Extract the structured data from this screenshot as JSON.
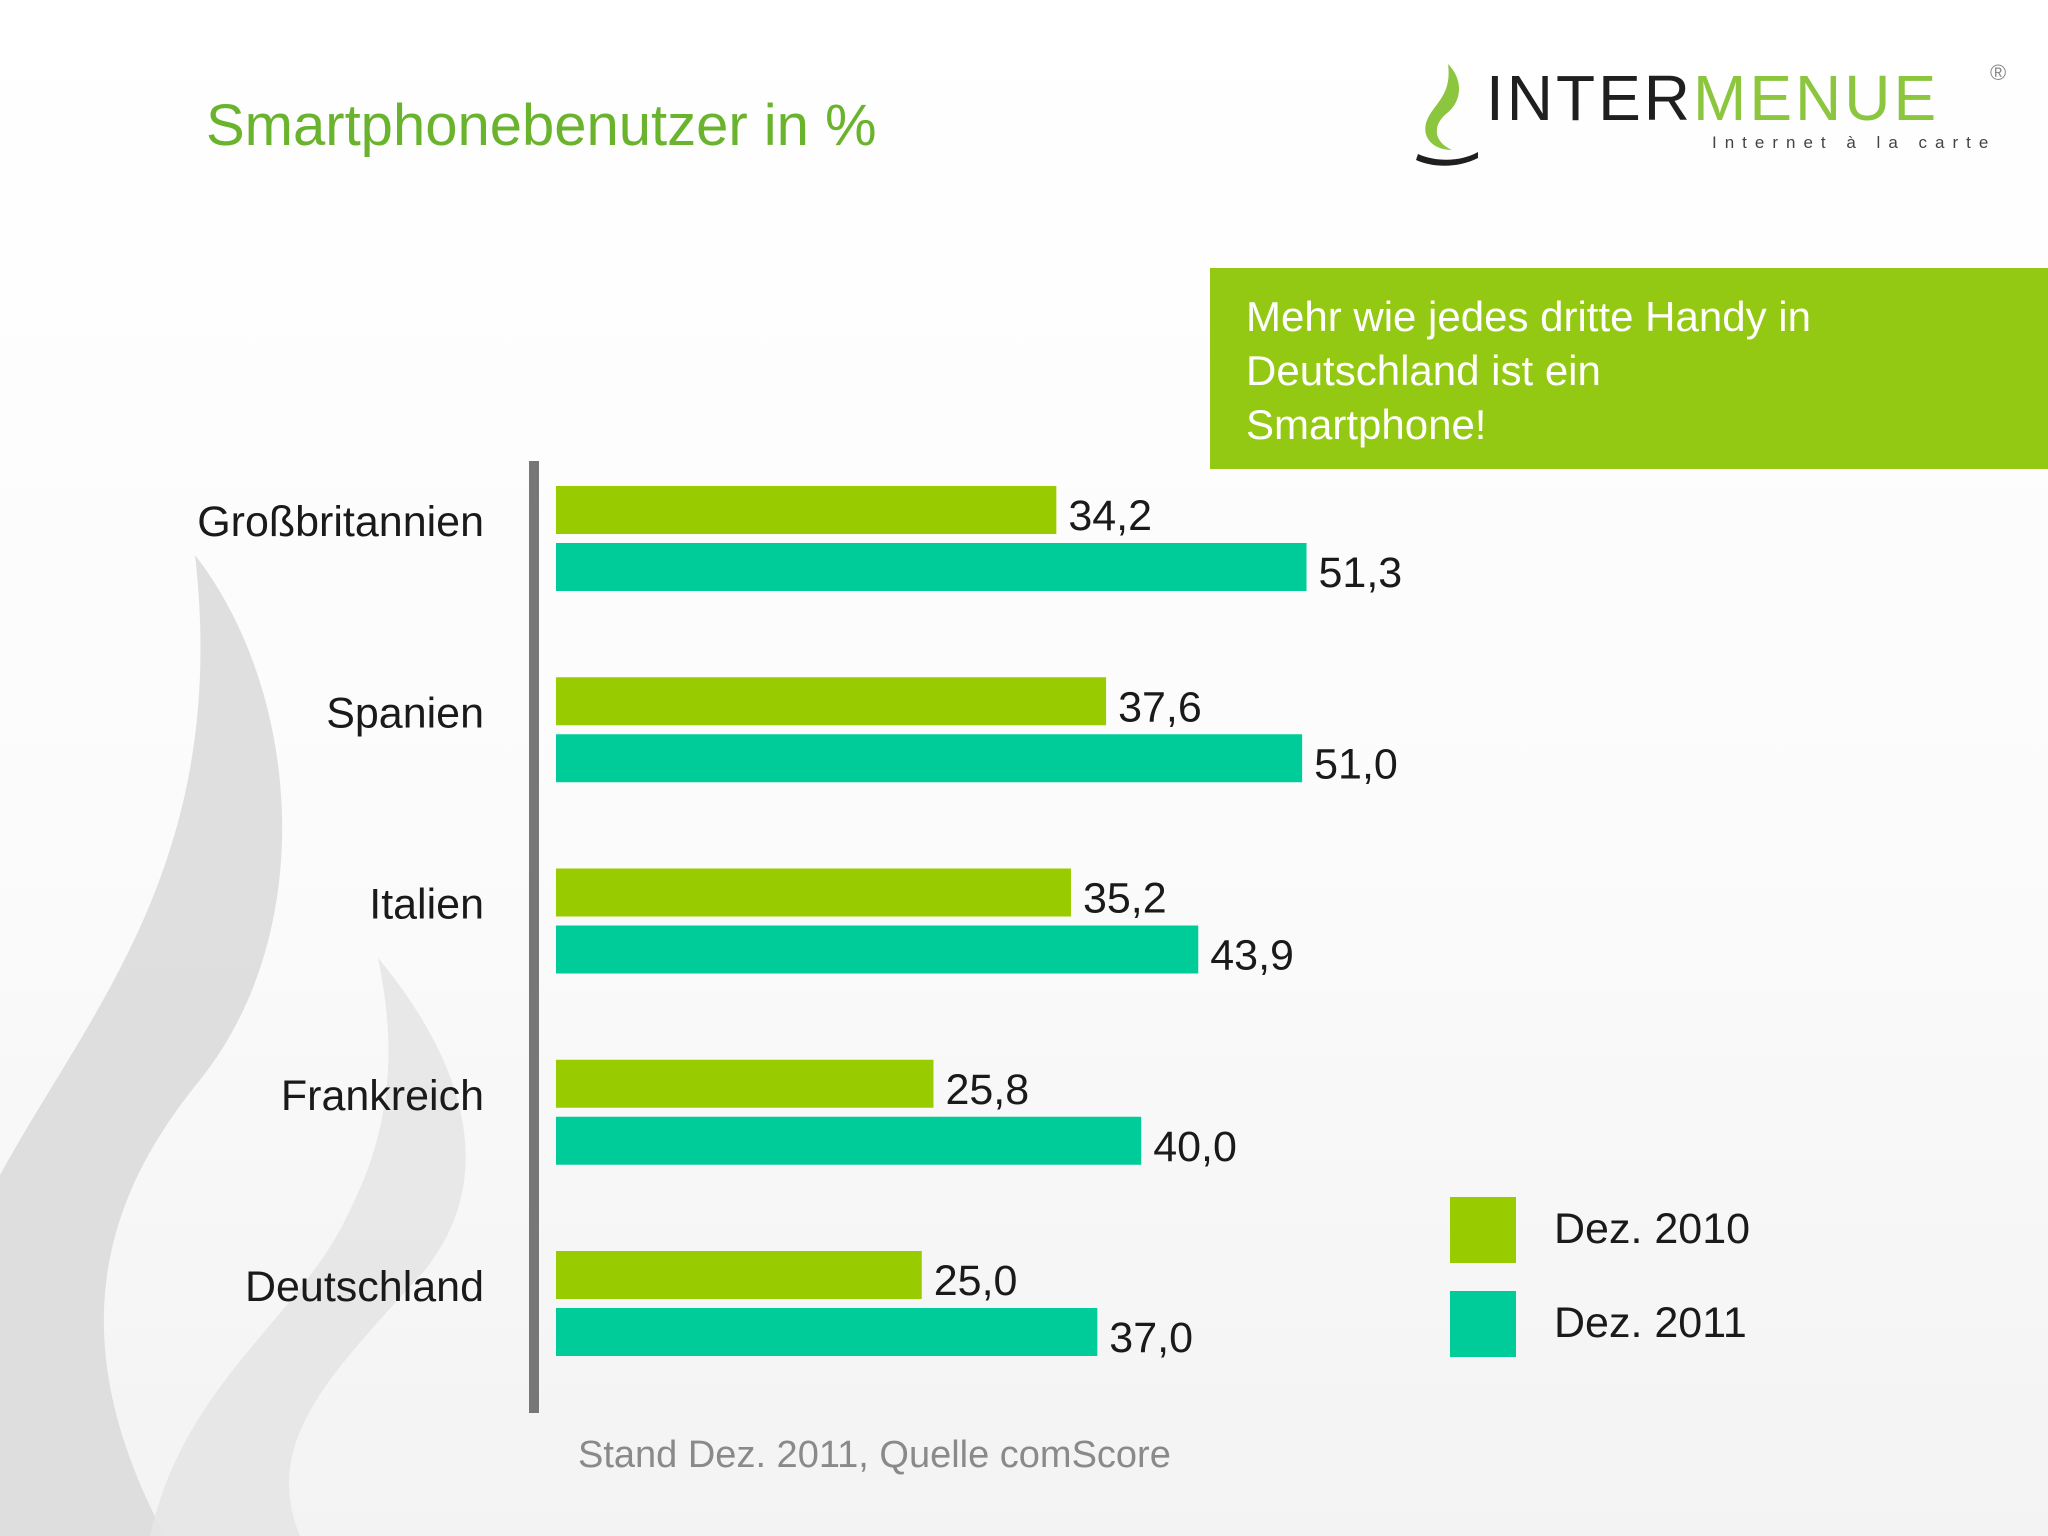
{
  "page": {
    "title": "Smartphonebenutzer in %",
    "callout": "Mehr wie jedes dritte Handy in\nDeutschland ist ein\nSmartphone!",
    "footnote": "Stand Dez. 2011, Quelle comScore"
  },
  "logo": {
    "word_dark": "INTER",
    "word_green": "MENUE",
    "tagline": "Internet à la carte",
    "registered": "®",
    "icon": "flame-icon"
  },
  "colors": {
    "title": "#6ab42d",
    "series_2010": "#99cc00",
    "series_2011": "#00cc99",
    "callout_bg": "#94c913",
    "axis": "#777777"
  },
  "legend": [
    {
      "label": "Dez. 2010",
      "color": "#99cc00"
    },
    {
      "label": "Dez. 2011",
      "color": "#00cc99"
    }
  ],
  "chart_data": {
    "type": "bar",
    "orientation": "horizontal",
    "categories": [
      "Großbritannien",
      "Spanien",
      "Italien",
      "Frankreich",
      "Deutschland"
    ],
    "series": [
      {
        "name": "Dez. 2010",
        "values": [
          34.2,
          37.6,
          35.2,
          25.8,
          25.0
        ],
        "labels": [
          "34,2",
          "37,6",
          "35,2",
          "25,8",
          "25,0"
        ],
        "color": "#99cc00"
      },
      {
        "name": "Dez. 2011",
        "values": [
          51.3,
          51.0,
          43.9,
          40.0,
          37.0
        ],
        "labels": [
          "51,3",
          "51,0",
          "43,9",
          "40,0",
          "37,0"
        ],
        "color": "#00cc99"
      }
    ],
    "xlim": [
      0,
      60
    ],
    "grid": false,
    "legend_position": "bottom-right"
  }
}
